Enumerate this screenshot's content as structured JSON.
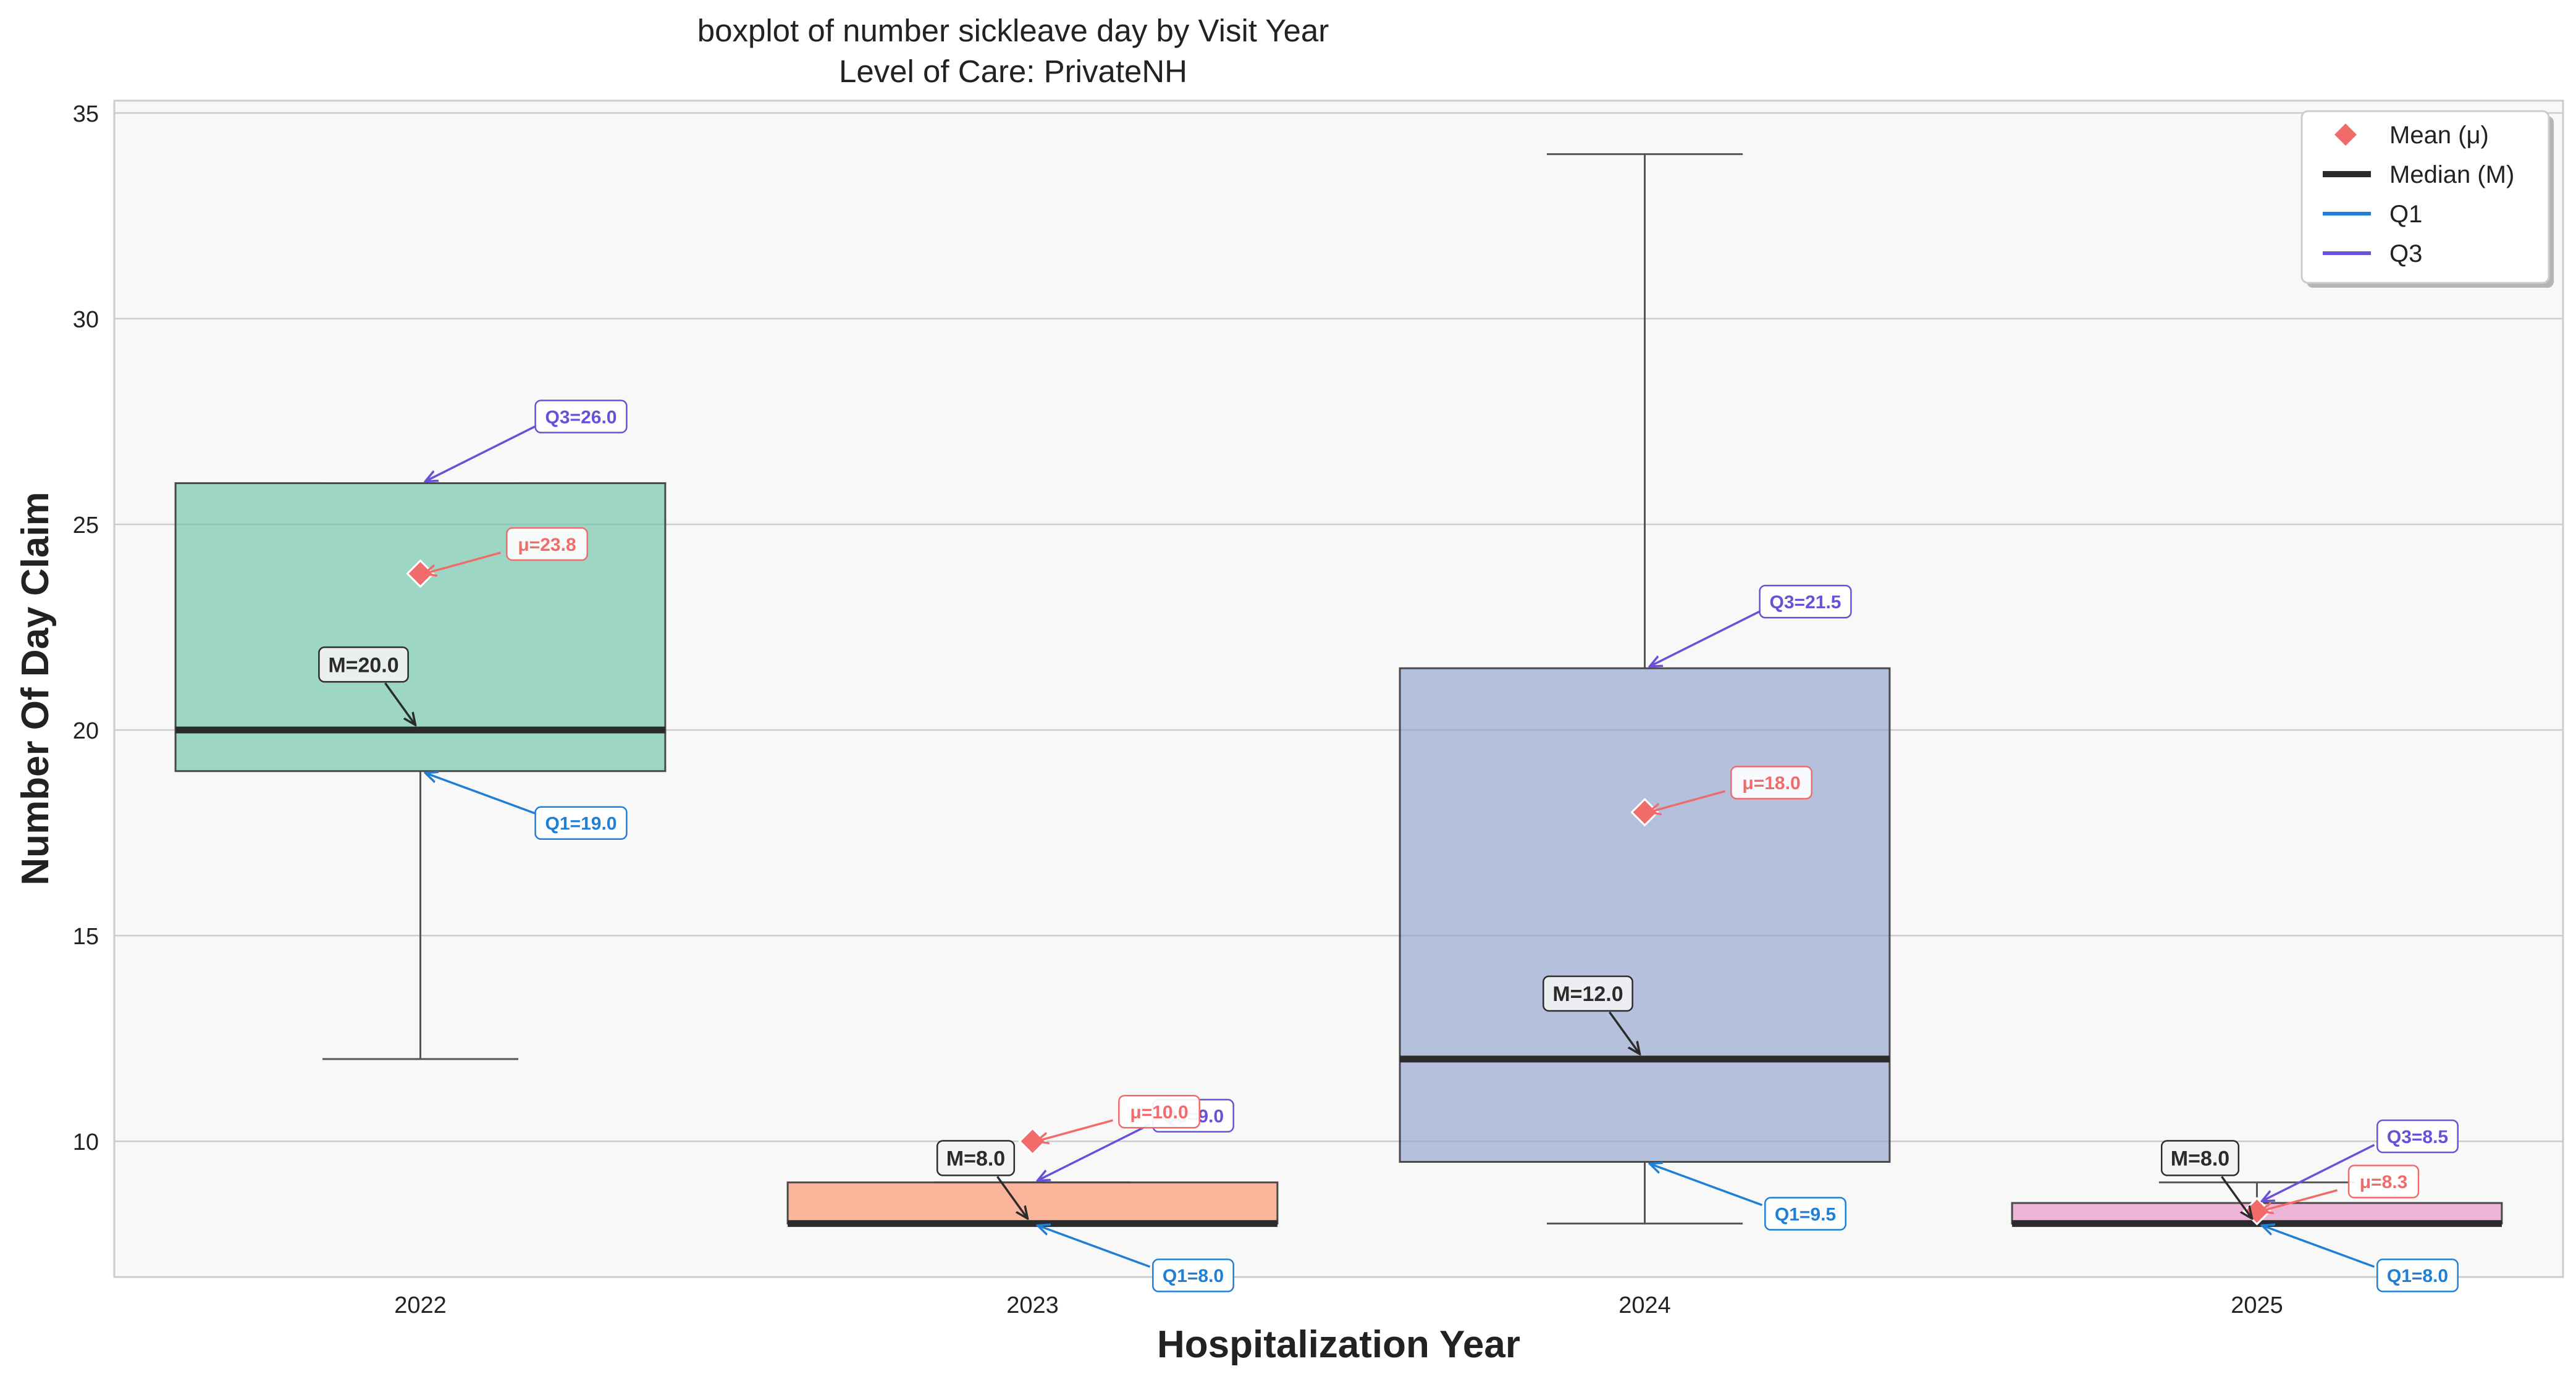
{
  "chart_data": {
    "type": "boxplot",
    "title": "boxplot of number sickleave day by Visit Year",
    "subtitle": "Level of Care: PrivateNH",
    "xlabel": "Hospitalization Year",
    "ylabel": "Number Of Day Claim",
    "ylim": [
      6.7,
      35.3
    ],
    "yticks": [
      "10",
      "15",
      "20",
      "25",
      "30",
      "35"
    ],
    "grid": true,
    "legend_position": "top-right",
    "legend": [
      {
        "label": "Mean (μ)",
        "kind": "mean"
      },
      {
        "label": "Median (M)",
        "kind": "median"
      },
      {
        "label": "Q1",
        "kind": "q1"
      },
      {
        "label": "Q3",
        "kind": "q3"
      }
    ],
    "categories": [
      "2022",
      "2023",
      "2024",
      "2025"
    ],
    "boxes": [
      {
        "category": "2022",
        "whisker_low": 12,
        "q1": 19,
        "median": 20,
        "q3": 26,
        "whisker_high": 26,
        "mean": 23.8,
        "color": "#66c2a5",
        "labels": {
          "q1": "Q1=19.0",
          "median": "M=20.0",
          "q3": "Q3=26.0",
          "mean": "μ=23.8"
        }
      },
      {
        "category": "2023",
        "whisker_low": 8,
        "q1": 8,
        "median": 8,
        "q3": 9,
        "whisker_high": 9,
        "mean": 10.0,
        "color": "#fc8d62",
        "labels": {
          "q1": "Q1=8.0",
          "median": "M=8.0",
          "q3": "Q3=9.0",
          "mean": "μ=10.0"
        }
      },
      {
        "category": "2024",
        "whisker_low": 8,
        "q1": 9.5,
        "median": 12,
        "q3": 21.5,
        "whisker_high": 34,
        "mean": 18.0,
        "color": "#8da0cb",
        "labels": {
          "q1": "Q1=9.5",
          "median": "M=12.0",
          "q3": "Q3=21.5",
          "mean": "μ=18.0"
        }
      },
      {
        "category": "2025",
        "whisker_low": 8,
        "q1": 8,
        "median": 8,
        "q3": 8.5,
        "whisker_high": 9,
        "mean": 8.3,
        "color": "#e78ac3",
        "labels": {
          "q1": "Q1=8.0",
          "median": "M=8.0",
          "q3": "Q3=8.5",
          "mean": "μ=8.3"
        }
      }
    ],
    "colors": {
      "mean": "#f26b6b",
      "median": "#2b2b2b",
      "q1": "#1f7fd6",
      "q3": "#6a4fd8",
      "plot_bg": "#f8f8f8",
      "grid": "#cccccc",
      "whisker": "#555555"
    }
  }
}
